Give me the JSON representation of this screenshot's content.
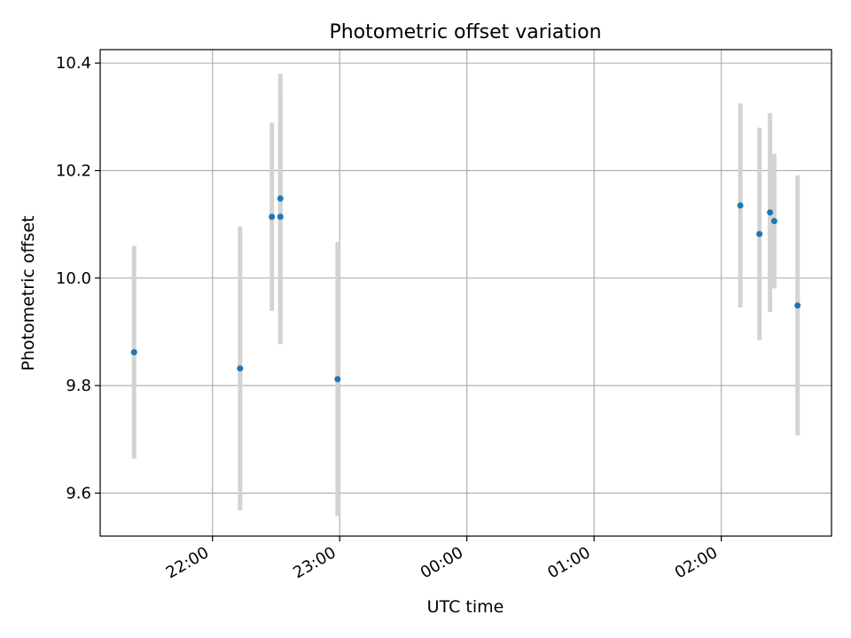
{
  "chart_data": {
    "type": "scatter",
    "title": "Photometric offset variation",
    "xlabel": "UTC time",
    "ylabel": "Photometric offset",
    "x_axis_type": "time",
    "xlim": [
      "21:07",
      "02:52"
    ],
    "ylim": [
      9.52,
      10.425
    ],
    "x_ticks": [
      "22:00",
      "23:00",
      "00:00",
      "01:00",
      "02:00"
    ],
    "y_ticks": [
      9.6,
      9.8,
      10.0,
      10.2,
      10.4
    ],
    "y_tick_labels": [
      "9.6",
      "9.8",
      "10.0",
      "10.2",
      "10.4"
    ],
    "grid": true,
    "legend": "none",
    "colors": {
      "points": "#1f77b4",
      "errorbars": "#d3d3d3",
      "grid": "#b0b0b0"
    },
    "points": [
      {
        "x": "21:23",
        "y": 9.862,
        "yerr": 0.198
      },
      {
        "x": "22:13",
        "y": 9.832,
        "yerr": 0.264
      },
      {
        "x": "22:28",
        "y": 10.114,
        "yerr": 0.175
      },
      {
        "x": "22:32",
        "y": 10.148,
        "yerr": 0.232
      },
      {
        "x": "22:32",
        "y": 10.114,
        "yerr": 0.237
      },
      {
        "x": "22:59",
        "y": 9.812,
        "yerr": 0.255
      },
      {
        "x": "02:09",
        "y": 10.135,
        "yerr": 0.19
      },
      {
        "x": "02:18",
        "y": 10.082,
        "yerr": 0.198
      },
      {
        "x": "02:23",
        "y": 10.122,
        "yerr": 0.185
      },
      {
        "x": "02:25",
        "y": 10.106,
        "yerr": 0.125
      },
      {
        "x": "02:36",
        "y": 9.949,
        "yerr": 0.242
      }
    ]
  }
}
